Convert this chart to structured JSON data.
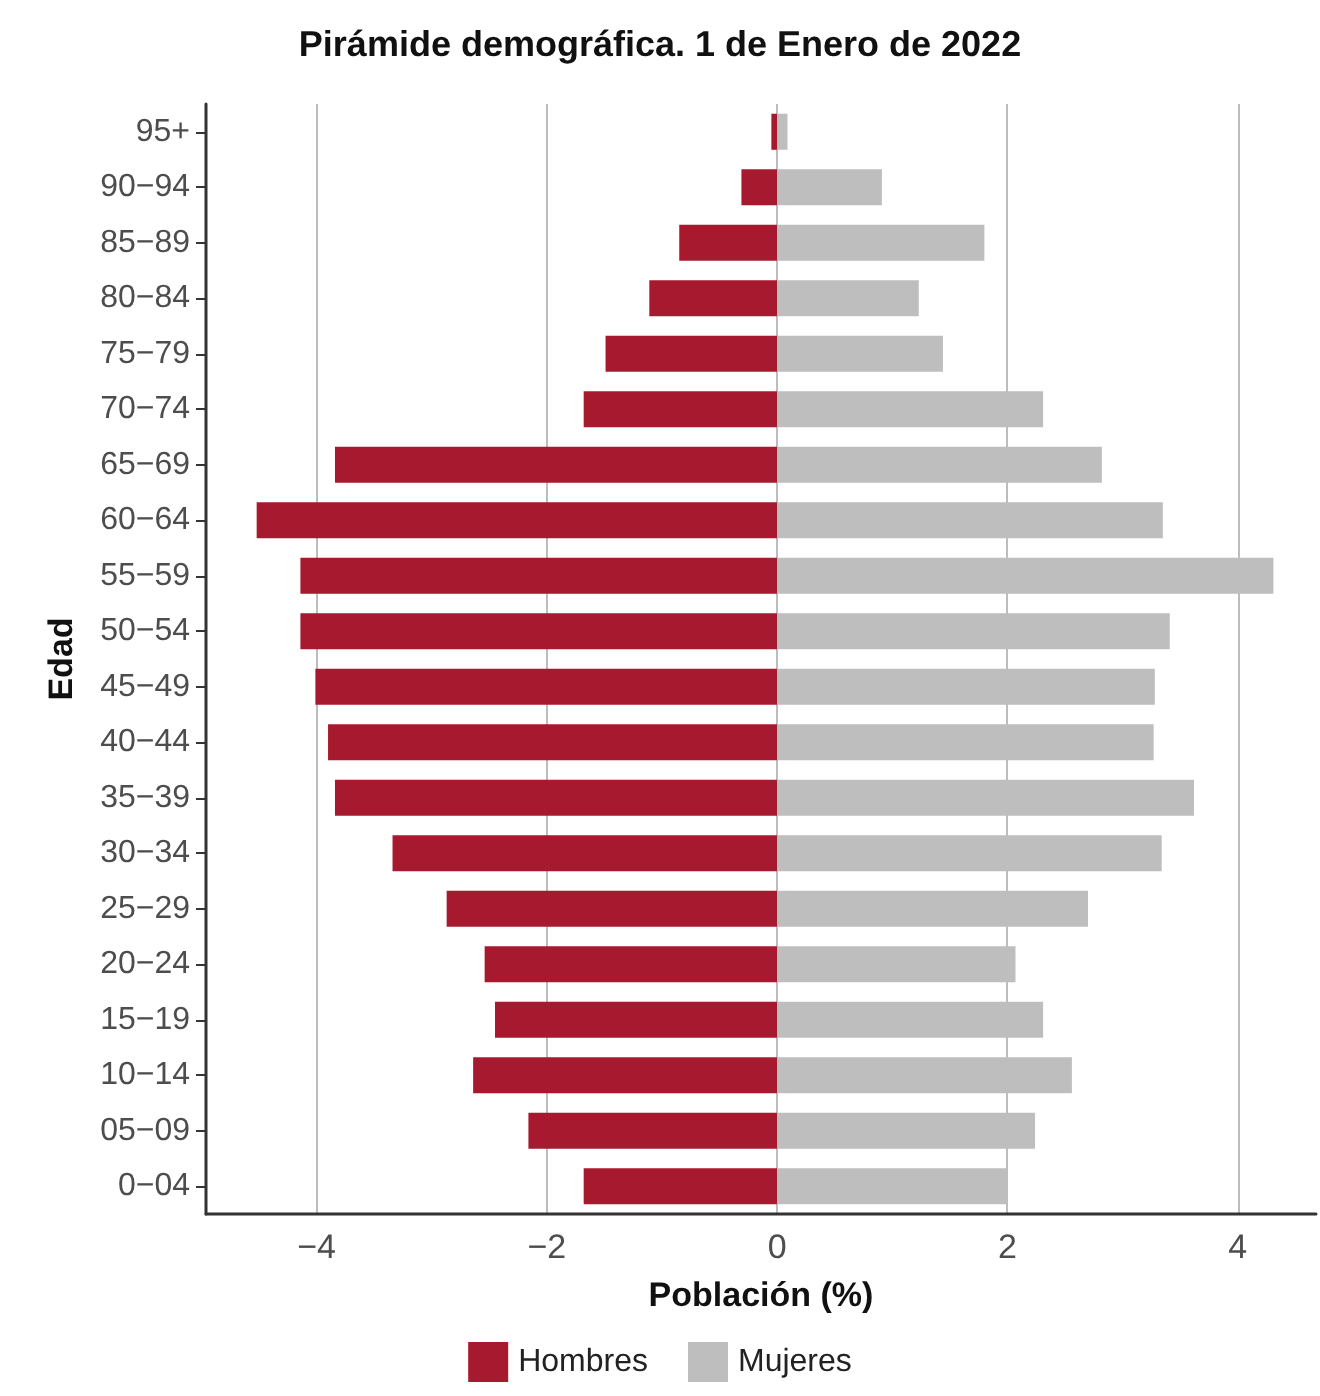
{
  "chart_data": {
    "type": "bar",
    "orientation": "horizontal",
    "title": "Pirámide demográfica. 1 de Enero de 2022",
    "xlabel": "Población (%)",
    "ylabel": "Edad",
    "categories": [
      "95+",
      "90−94",
      "85−89",
      "80−84",
      "75−79",
      "70−74",
      "65−69",
      "60−64",
      "55−59",
      "50−54",
      "45−49",
      "40−44",
      "35−39",
      "30−34",
      "25−29",
      "20−24",
      "15−19",
      "10−14",
      "05−09",
      "0−04"
    ],
    "series": [
      {
        "name": "Hombres",
        "color": "#a6192e",
        "values": [
          -0.05,
          -0.31,
          -0.85,
          -1.11,
          -1.49,
          -1.68,
          -3.84,
          -4.52,
          -4.14,
          -4.14,
          -4.01,
          -3.9,
          -3.84,
          -3.34,
          -2.87,
          -2.54,
          -2.45,
          -2.64,
          -2.16,
          -1.68
        ]
      },
      {
        "name": "Mujeres",
        "color": "#bebebe",
        "values": [
          0.09,
          0.91,
          1.8,
          1.23,
          1.44,
          2.31,
          2.82,
          3.35,
          4.31,
          3.41,
          3.28,
          3.27,
          3.62,
          3.34,
          2.7,
          2.07,
          2.31,
          2.56,
          2.24,
          2.0
        ]
      }
    ],
    "xlim": [
      -4.96,
      4.68
    ],
    "xticks": [
      {
        "value": -4,
        "label": "−4"
      },
      {
        "value": -2,
        "label": "−2"
      },
      0,
      2,
      4
    ],
    "grid": "x",
    "legend": "bottom",
    "stacked": true
  }
}
